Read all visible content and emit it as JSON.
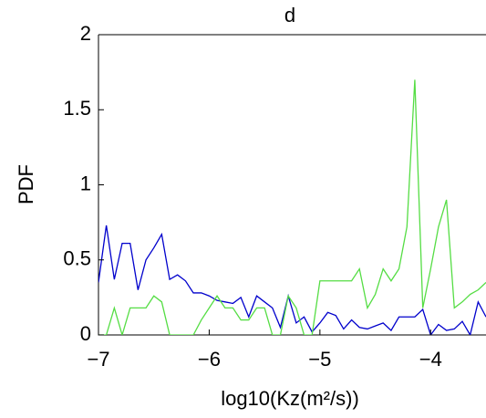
{
  "chart_data": {
    "type": "line",
    "title": "d",
    "xlabel": "log10(Kz(m²/s))",
    "ylabel": "PDF",
    "x": [
      -7,
      -6.929,
      -6.857,
      -6.786,
      -6.714,
      -6.643,
      -6.571,
      -6.5,
      -6.429,
      -6.357,
      -6.286,
      -6.214,
      -6.143,
      -6.071,
      -6,
      -5.929,
      -5.857,
      -5.786,
      -5.714,
      -5.643,
      -5.571,
      -5.5,
      -5.429,
      -5.357,
      -5.286,
      -5.214,
      -5.143,
      -5.071,
      -5,
      -4.929,
      -4.857,
      -4.786,
      -4.714,
      -4.643,
      -4.571,
      -4.5,
      -4.429,
      -4.357,
      -4.286,
      -4.214,
      -4.143,
      -4.071,
      -4,
      -3.929,
      -3.857,
      -3.786,
      -3.714,
      -3.643,
      -3.571,
      -3.5
    ],
    "series": [
      {
        "color": "#0000cc",
        "values": [
          0.35,
          0.73,
          0.37,
          0.61,
          0.61,
          0.3,
          0.5,
          0.58,
          0.67,
          0.37,
          0.4,
          0.36,
          0.28,
          0.28,
          0.26,
          0.23,
          0.22,
          0.21,
          0.25,
          0.12,
          0.26,
          0.22,
          0.18,
          0.05,
          0.26,
          0.08,
          0.12,
          0.02,
          0.08,
          0.15,
          0.13,
          0.04,
          0.1,
          0.05,
          0.04,
          0.06,
          0.08,
          0.03,
          0.12,
          0.12,
          0.12,
          0.17,
          0.0,
          0.07,
          0.03,
          0.04,
          0.09,
          0.0,
          0.22,
          0.12
        ]
      },
      {
        "color": "#55dd44",
        "values": [
          0.0,
          0.0,
          0.18,
          0.0,
          0.18,
          0.18,
          0.18,
          0.26,
          0.22,
          0.0,
          0.0,
          0.0,
          0.0,
          0.1,
          0.18,
          0.26,
          0.18,
          0.18,
          0.1,
          0.1,
          0.18,
          0.18,
          0.0,
          0.0,
          0.26,
          0.18,
          0.0,
          0.0,
          0.36,
          0.36,
          0.36,
          0.36,
          0.36,
          0.44,
          0.18,
          0.27,
          0.44,
          0.36,
          0.44,
          0.72,
          1.7,
          0.18,
          0.44,
          0.72,
          0.9,
          0.18,
          0.22,
          0.27,
          0.3,
          0.35
        ]
      }
    ],
    "xlim": [
      -7,
      -3.5
    ],
    "ylim": [
      0,
      2
    ],
    "xticks": [
      {
        "value": -7,
        "label": "−7"
      },
      {
        "value": -6,
        "label": "−6"
      },
      {
        "value": -5,
        "label": "−5"
      },
      {
        "value": -4,
        "label": "−4"
      }
    ],
    "yticks": [
      0,
      0.5,
      1,
      1.5,
      2
    ]
  }
}
